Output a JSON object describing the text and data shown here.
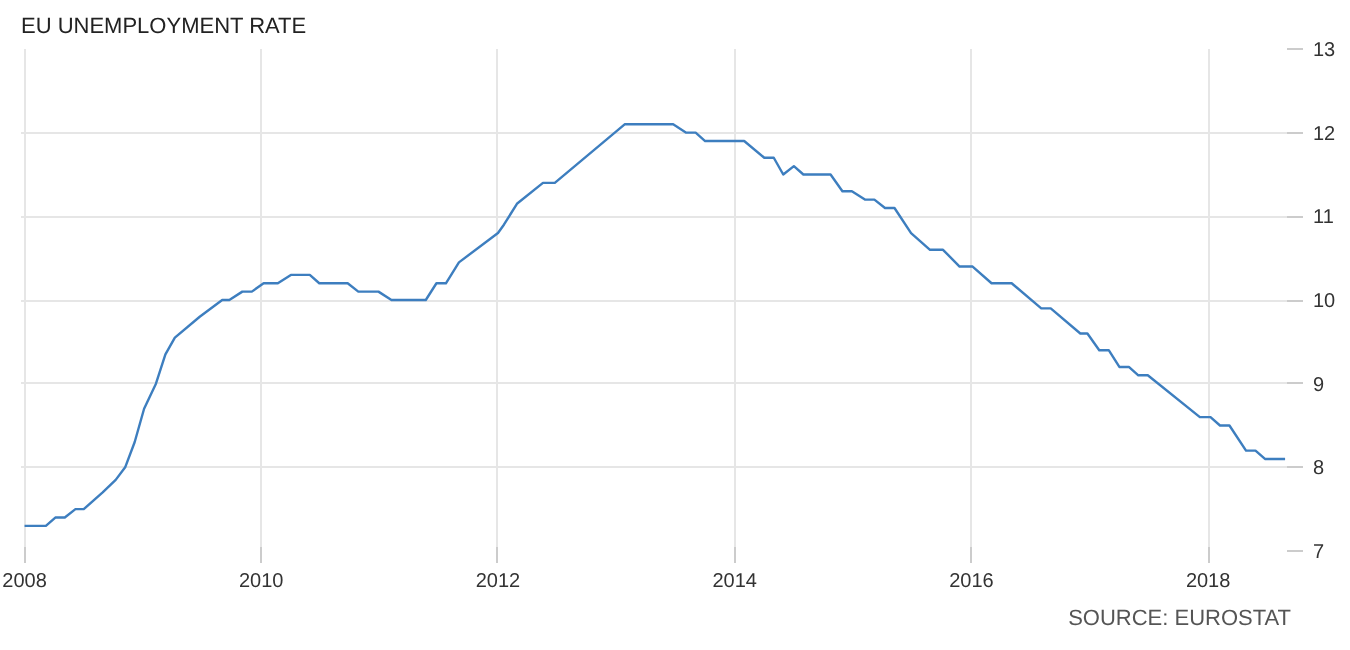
{
  "chart_data": {
    "type": "line",
    "title": "EU UNEMPLOYMENT RATE",
    "annotations": [
      "SOURCE: EUROSTAT"
    ],
    "x": [
      2008.0,
      2008.18,
      2008.26,
      2008.34,
      2008.43,
      2008.5,
      2008.66,
      2008.77,
      2008.85,
      2008.93,
      2009.01,
      2009.11,
      2009.19,
      2009.27,
      2009.48,
      2009.67,
      2009.73,
      2009.84,
      2009.92,
      2010.02,
      2010.14,
      2010.25,
      2010.41,
      2010.49,
      2010.73,
      2010.82,
      2010.99,
      2011.1,
      2011.39,
      2011.48,
      2011.56,
      2011.67,
      2012.0,
      2012.05,
      2012.16,
      2012.38,
      2012.48,
      2013.07,
      2013.48,
      2013.59,
      2013.67,
      2013.75,
      2014.08,
      2014.25,
      2014.33,
      2014.41,
      2014.5,
      2014.58,
      2014.81,
      2014.91,
      2014.99,
      2015.1,
      2015.18,
      2015.27,
      2015.35,
      2015.49,
      2015.65,
      2015.76,
      2015.9,
      2016.01,
      2016.17,
      2016.34,
      2016.59,
      2016.67,
      2016.92,
      2016.98,
      2017.08,
      2017.16,
      2017.25,
      2017.33,
      2017.41,
      2017.49,
      2017.93,
      2018.02,
      2018.1,
      2018.18,
      2018.32,
      2018.4,
      2018.48,
      2018.65
    ],
    "series": [
      {
        "color": "#3d7ebf",
        "values": [
          7.3,
          7.3,
          7.4,
          7.4,
          7.5,
          7.5,
          7.7,
          7.85,
          8.0,
          8.3,
          8.7,
          9.0,
          9.35,
          9.55,
          9.8,
          10.0,
          10.0,
          10.1,
          10.1,
          10.2,
          10.2,
          10.3,
          10.3,
          10.2,
          10.2,
          10.1,
          10.1,
          10.0,
          10.0,
          10.2,
          10.2,
          10.45,
          10.8,
          10.9,
          11.15,
          11.4,
          11.4,
          12.1,
          12.1,
          12.0,
          12.0,
          11.9,
          11.9,
          11.7,
          11.7,
          11.5,
          11.6,
          11.5,
          11.5,
          11.3,
          11.3,
          11.2,
          11.2,
          11.1,
          11.1,
          10.8,
          10.6,
          10.6,
          10.4,
          10.4,
          10.2,
          10.2,
          9.9,
          9.9,
          9.6,
          9.6,
          9.4,
          9.4,
          9.2,
          9.2,
          9.1,
          9.1,
          8.6,
          8.6,
          8.5,
          8.5,
          8.2,
          8.2,
          8.1,
          8.1
        ]
      }
    ],
    "xlim": [
      2007.97,
      2018.7
    ],
    "xticks": [
      {
        "value": 2008,
        "label": "2008"
      },
      {
        "value": 2010,
        "label": "2010"
      },
      {
        "value": 2012,
        "label": "2012"
      },
      {
        "value": 2014,
        "label": "2014"
      },
      {
        "value": 2016,
        "label": "2016"
      },
      {
        "value": 2018,
        "label": "2018"
      }
    ],
    "ylim": [
      7,
      13
    ],
    "yticks": [
      7,
      8,
      9,
      10,
      11,
      12,
      13
    ],
    "grid": true,
    "marker": "none",
    "line_style": "solid"
  }
}
